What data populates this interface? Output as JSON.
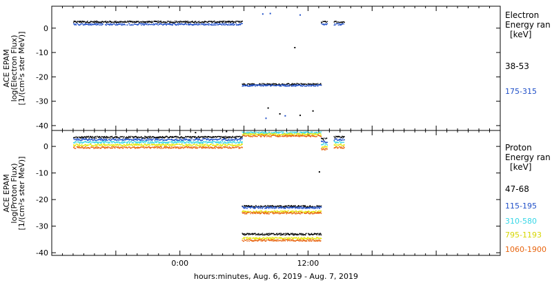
{
  "colors": {
    "axis": "#000000",
    "black": "#000000",
    "blue": "#1f4fc8",
    "cyan": "#35d6e6",
    "yellow": "#e6e600",
    "orange": "#e8650f"
  },
  "footer": {
    "xlabel": "hours:minutes, Aug.  6, 2019 - Aug.  7, 2019"
  },
  "chart_data": [
    {
      "type": "scatter",
      "panel": "electron",
      "ylabel": [
        "ACE EPAM",
        "log(Electron Flux)",
        "[1/(cm²s ster MeV)]"
      ],
      "legend_title": [
        "Electron",
        "Energy ran",
        "[keV]"
      ],
      "xlim": [
        -12,
        30
      ],
      "ylim": [
        -42,
        9
      ],
      "yticks": [
        0,
        -10,
        -20,
        -30,
        -40
      ],
      "xticks": [
        0,
        12
      ],
      "xtick_labels": [
        "0:00",
        "12:00"
      ],
      "series": [
        {
          "name": "38-53",
          "color": "black",
          "segments": [
            {
              "x": [
                -10.0,
                5.8
              ],
              "y": 2.6
            },
            {
              "x": [
                13.2,
                13.8
              ],
              "y": 2.6
            },
            {
              "x": [
                14.4,
                15.4
              ],
              "y": 2.6
            },
            {
              "x": [
                5.8,
                13.2
              ],
              "y": -23.0
            }
          ],
          "points": [
            [
              8.2,
              -32.8
            ],
            [
              9.3,
              -35.2
            ],
            [
              10.7,
              -8.0
            ],
            [
              11.2,
              -35.8
            ],
            [
              12.4,
              -34.0
            ]
          ]
        },
        {
          "name": "175-315",
          "color": "blue",
          "segments": [
            {
              "x": [
                -10.0,
                5.8
              ],
              "y": 1.6
            },
            {
              "x": [
                13.2,
                13.8
              ],
              "y": 1.6
            },
            {
              "x": [
                14.4,
                15.4
              ],
              "y": 1.6
            },
            {
              "x": [
                5.8,
                13.2
              ],
              "y": -23.5
            }
          ],
          "points": [
            [
              7.7,
              5.8
            ],
            [
              8.4,
              6.0
            ],
            [
              11.2,
              5.4
            ],
            [
              8.0,
              -37.0
            ],
            [
              9.8,
              -36.0
            ]
          ]
        }
      ]
    },
    {
      "type": "scatter",
      "panel": "proton",
      "ylabel": [
        "ACE EPAM",
        "log(Proton Flux)",
        "[1/(cm²s ster MeV)]"
      ],
      "legend_title": [
        "Proton",
        "Energy ran",
        "[keV]"
      ],
      "xlim": [
        -12,
        30
      ],
      "ylim": [
        -41,
        6
      ],
      "yticks": [
        0,
        -10,
        -20,
        -30,
        -40
      ],
      "xticks": [
        0,
        12
      ],
      "xtick_labels": [
        "0:00",
        "12:00"
      ],
      "series": [
        {
          "name": "47-68",
          "color": "black",
          "segments": [
            {
              "x": [
                -10.0,
                5.8
              ],
              "y": 3.5
            },
            {
              "x": [
                13.2,
                13.8
              ],
              "y": 2.8
            },
            {
              "x": [
                14.4,
                15.4
              ],
              "y": 3.5
            },
            {
              "x": [
                5.8,
                13.2
              ],
              "y": -22.5
            },
            {
              "x": [
                5.8,
                13.2
              ],
              "y": -33.0
            }
          ],
          "points": [
            [
              1.4,
              5.2
            ],
            [
              4.3,
              5.6
            ],
            [
              13.0,
              -9.6
            ]
          ]
        },
        {
          "name": "115-195",
          "color": "blue",
          "segments": [
            {
              "x": [
                -10.0,
                5.8
              ],
              "y": 2.6
            },
            {
              "x": [
                13.2,
                13.8
              ],
              "y": 1.8
            },
            {
              "x": [
                14.4,
                15.4
              ],
              "y": 2.6
            },
            {
              "x": [
                5.8,
                13.2
              ],
              "y": -23.0
            }
          ],
          "points": []
        },
        {
          "name": "310-580",
          "color": "cyan",
          "segments": [
            {
              "x": [
                -10.0,
                5.8
              ],
              "y": 1.6
            },
            {
              "x": [
                5.8,
                13.2
              ],
              "y": 5.2
            },
            {
              "x": [
                13.2,
                13.8
              ],
              "y": 0.8
            },
            {
              "x": [
                14.4,
                15.4
              ],
              "y": 1.6
            }
          ],
          "points": []
        },
        {
          "name": "795-1193",
          "color": "yellow",
          "segments": [
            {
              "x": [
                -10.0,
                5.8
              ],
              "y": 0.6
            },
            {
              "x": [
                5.8,
                13.2
              ],
              "y": 4.6
            },
            {
              "x": [
                13.2,
                13.8
              ],
              "y": -0.2
            },
            {
              "x": [
                14.4,
                15.4
              ],
              "y": 0.6
            },
            {
              "x": [
                5.8,
                13.2
              ],
              "y": -24.5
            },
            {
              "x": [
                5.8,
                13.2
              ],
              "y": -34.5
            }
          ],
          "points": []
        },
        {
          "name": "1060-1900",
          "color": "orange",
          "segments": [
            {
              "x": [
                -10.0,
                5.8
              ],
              "y": -0.4
            },
            {
              "x": [
                5.8,
                13.2
              ],
              "y": 4.0
            },
            {
              "x": [
                13.2,
                13.8
              ],
              "y": -1.0
            },
            {
              "x": [
                14.4,
                15.4
              ],
              "y": -0.4
            },
            {
              "x": [
                5.8,
                13.2
              ],
              "y": -25.0
            },
            {
              "x": [
                5.8,
                13.2
              ],
              "y": -35.3
            }
          ],
          "points": []
        }
      ]
    }
  ]
}
